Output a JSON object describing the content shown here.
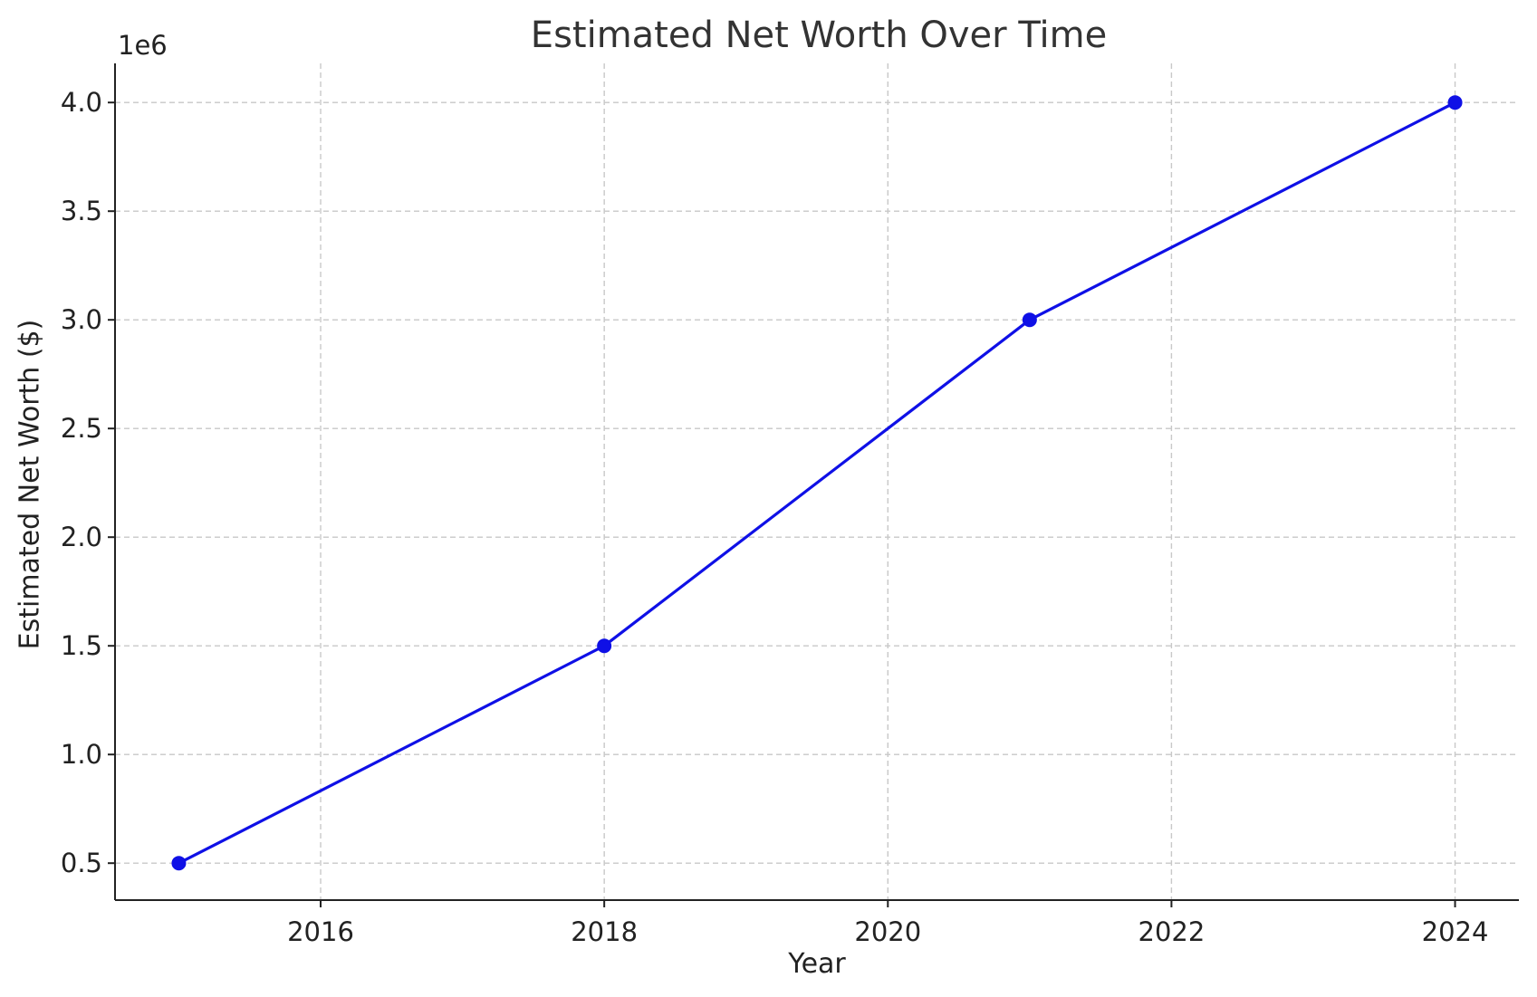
{
  "chart_data": {
    "type": "line",
    "title": "Estimated Net Worth Over Time",
    "xlabel": "Year",
    "ylabel": "Estimated Net Worth ($)",
    "y_offset_label": "1e6",
    "xlim": [
      2014.55,
      2024.45
    ],
    "ylim": [
      0.33,
      4.18
    ],
    "x_ticks": [
      2016,
      2018,
      2020,
      2022,
      2024
    ],
    "x_tick_labels": [
      "2016",
      "2018",
      "2020",
      "2022",
      "2024"
    ],
    "y_ticks": [
      0.5,
      1.0,
      1.5,
      2.0,
      2.5,
      3.0,
      3.5,
      4.0
    ],
    "y_tick_labels": [
      "0.5",
      "1.0",
      "1.5",
      "2.0",
      "2.5",
      "3.0",
      "3.5",
      "4.0"
    ],
    "grid": true,
    "series": [
      {
        "color": "#0f10e6",
        "marker": "circle",
        "x": [
          2015,
          2018,
          2021,
          2024
        ],
        "y": [
          0.5,
          1.5,
          3.0,
          4.0
        ]
      }
    ]
  }
}
